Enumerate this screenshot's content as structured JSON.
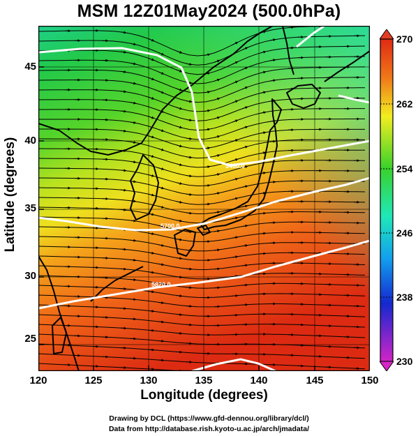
{
  "title": "MSM 12Z01May2024 (500.0hPa)",
  "axes": {
    "xlabel": "Longitude (degrees)",
    "ylabel": "Latitude  (degrees)",
    "xticks": [
      "120",
      "125",
      "130",
      "135",
      "140",
      "145",
      "150"
    ],
    "yticks": [
      "25",
      "30",
      "35",
      "40",
      "45"
    ],
    "xlim": [
      120,
      150
    ],
    "ylim": [
      22.4,
      47.6
    ]
  },
  "colorbar": {
    "labels": [
      "270",
      "262",
      "254",
      "246",
      "238",
      "230"
    ],
    "min": 230,
    "max": 270
  },
  "contour_labels": [
    "5460.0",
    "5700.0",
    "5820.0"
  ],
  "credits": {
    "line1": "Drawing by DCL (https://www.gfd-dennou.org/library/dcl/)",
    "line2": "Data from http://database.rish.kyoto-u.ac.jp/arch/jmadata/"
  },
  "colors": {
    "field_low": "#22cc66",
    "field_mid": "#d6e62a",
    "field_high": "#e02a1a",
    "contour": "#ffffff",
    "streamline": "#000000"
  }
}
